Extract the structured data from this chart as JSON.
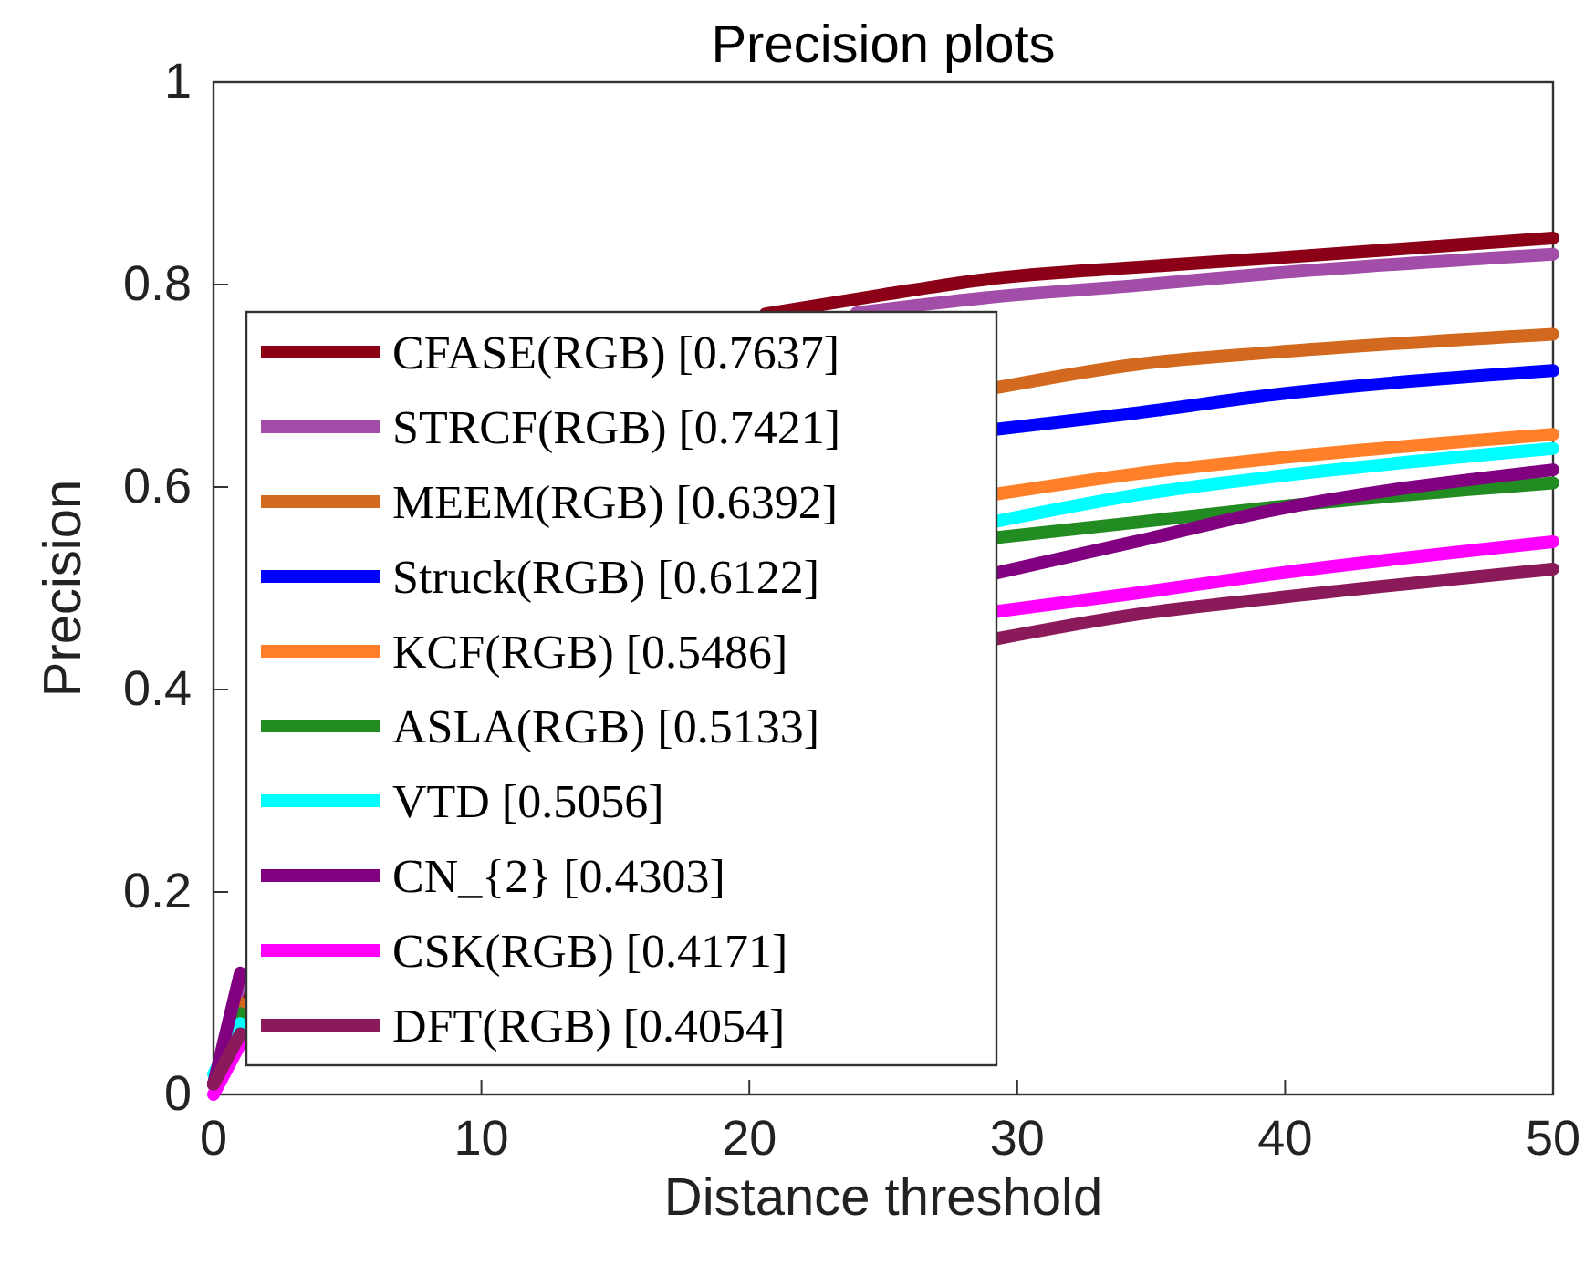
{
  "chart_data": {
    "type": "line",
    "title": "Precision plots",
    "xlabel": "Distance threshold",
    "ylabel": "Precision",
    "xlim": [
      0,
      50
    ],
    "ylim": [
      0,
      1
    ],
    "xticks": [
      0,
      10,
      20,
      30,
      40,
      50
    ],
    "yticks": [
      0,
      0.2,
      0.4,
      0.6,
      0.8,
      1
    ],
    "grid": false,
    "legend": "left",
    "marker": "none",
    "line_style": "solid",
    "series": [
      {
        "name": "CFASE(RGB) [0.7637]",
        "color": "#8b0016",
        "x": [
          0,
          1,
          15,
          20.6,
          25,
          28.8,
          34.4,
          39.5,
          50
        ],
        "values": [
          0.01,
          0.1,
          null,
          0.771,
          0.79,
          0.805,
          0.817,
          0.826,
          0.846
        ]
      },
      {
        "name": "STRCF(RGB) [0.7421]",
        "color": "#a24ea8",
        "x": [
          0,
          1,
          15,
          24,
          28.8,
          34.4,
          39.5,
          50
        ],
        "values": [
          0.01,
          0.11,
          null,
          0.772,
          0.787,
          0.799,
          0.811,
          0.83
        ]
      },
      {
        "name": "MEEM(RGB) [0.6392]",
        "color": "#d2691e",
        "x": [
          0,
          1,
          15,
          29.2,
          34.4,
          39.5,
          50
        ],
        "values": [
          0.01,
          0.09,
          null,
          0.698,
          0.721,
          0.733,
          0.751
        ]
      },
      {
        "name": "Struck(RGB) [0.6122]",
        "color": "#0000ff",
        "x": [
          0,
          1,
          15,
          29.2,
          34.4,
          39.5,
          50
        ],
        "values": [
          0.01,
          0.08,
          null,
          0.657,
          0.673,
          0.691,
          0.715
        ]
      },
      {
        "name": "KCF(RGB) [0.5486]",
        "color": "#ff8028",
        "x": [
          0,
          1,
          15,
          29.2,
          34.4,
          39.5,
          50
        ],
        "values": [
          0.01,
          0.08,
          null,
          0.593,
          0.613,
          0.628,
          0.652
        ]
      },
      {
        "name": "ASLA(RGB) [0.5133]",
        "color": "#228b22",
        "x": [
          0,
          1,
          15,
          29.2,
          34.4,
          39.5,
          50
        ],
        "values": [
          0.01,
          0.08,
          null,
          0.55,
          0.565,
          0.58,
          0.604
        ]
      },
      {
        "name": "VTD [0.5056]",
        "color": "#00ffff",
        "x": [
          0,
          1,
          15,
          29.2,
          34.4,
          39.5,
          50
        ],
        "values": [
          0.02,
          0.07,
          null,
          0.566,
          0.592,
          0.61,
          0.638
        ]
      },
      {
        "name": "CN_{2} [0.4303]",
        "color": "#800080",
        "x": [
          0,
          1,
          15,
          29.2,
          34.4,
          39.5,
          50
        ],
        "values": [
          0.01,
          0.12,
          null,
          0.515,
          0.546,
          0.577,
          0.617
        ]
      },
      {
        "name": "CSK(RGB) [0.4171]",
        "color": "#ff00ff",
        "x": [
          0,
          1,
          15,
          29.2,
          34.4,
          39.5,
          50
        ],
        "values": [
          0,
          0.05,
          null,
          0.477,
          0.495,
          0.514,
          0.546
        ]
      },
      {
        "name": "DFT(RGB) [0.4054]",
        "color": "#8b1a5a",
        "x": [
          0,
          1,
          15,
          29.2,
          34.4,
          39.5,
          50
        ],
        "values": [
          0.01,
          0.06,
          null,
          0.45,
          0.474,
          0.49,
          0.519
        ]
      }
    ]
  }
}
